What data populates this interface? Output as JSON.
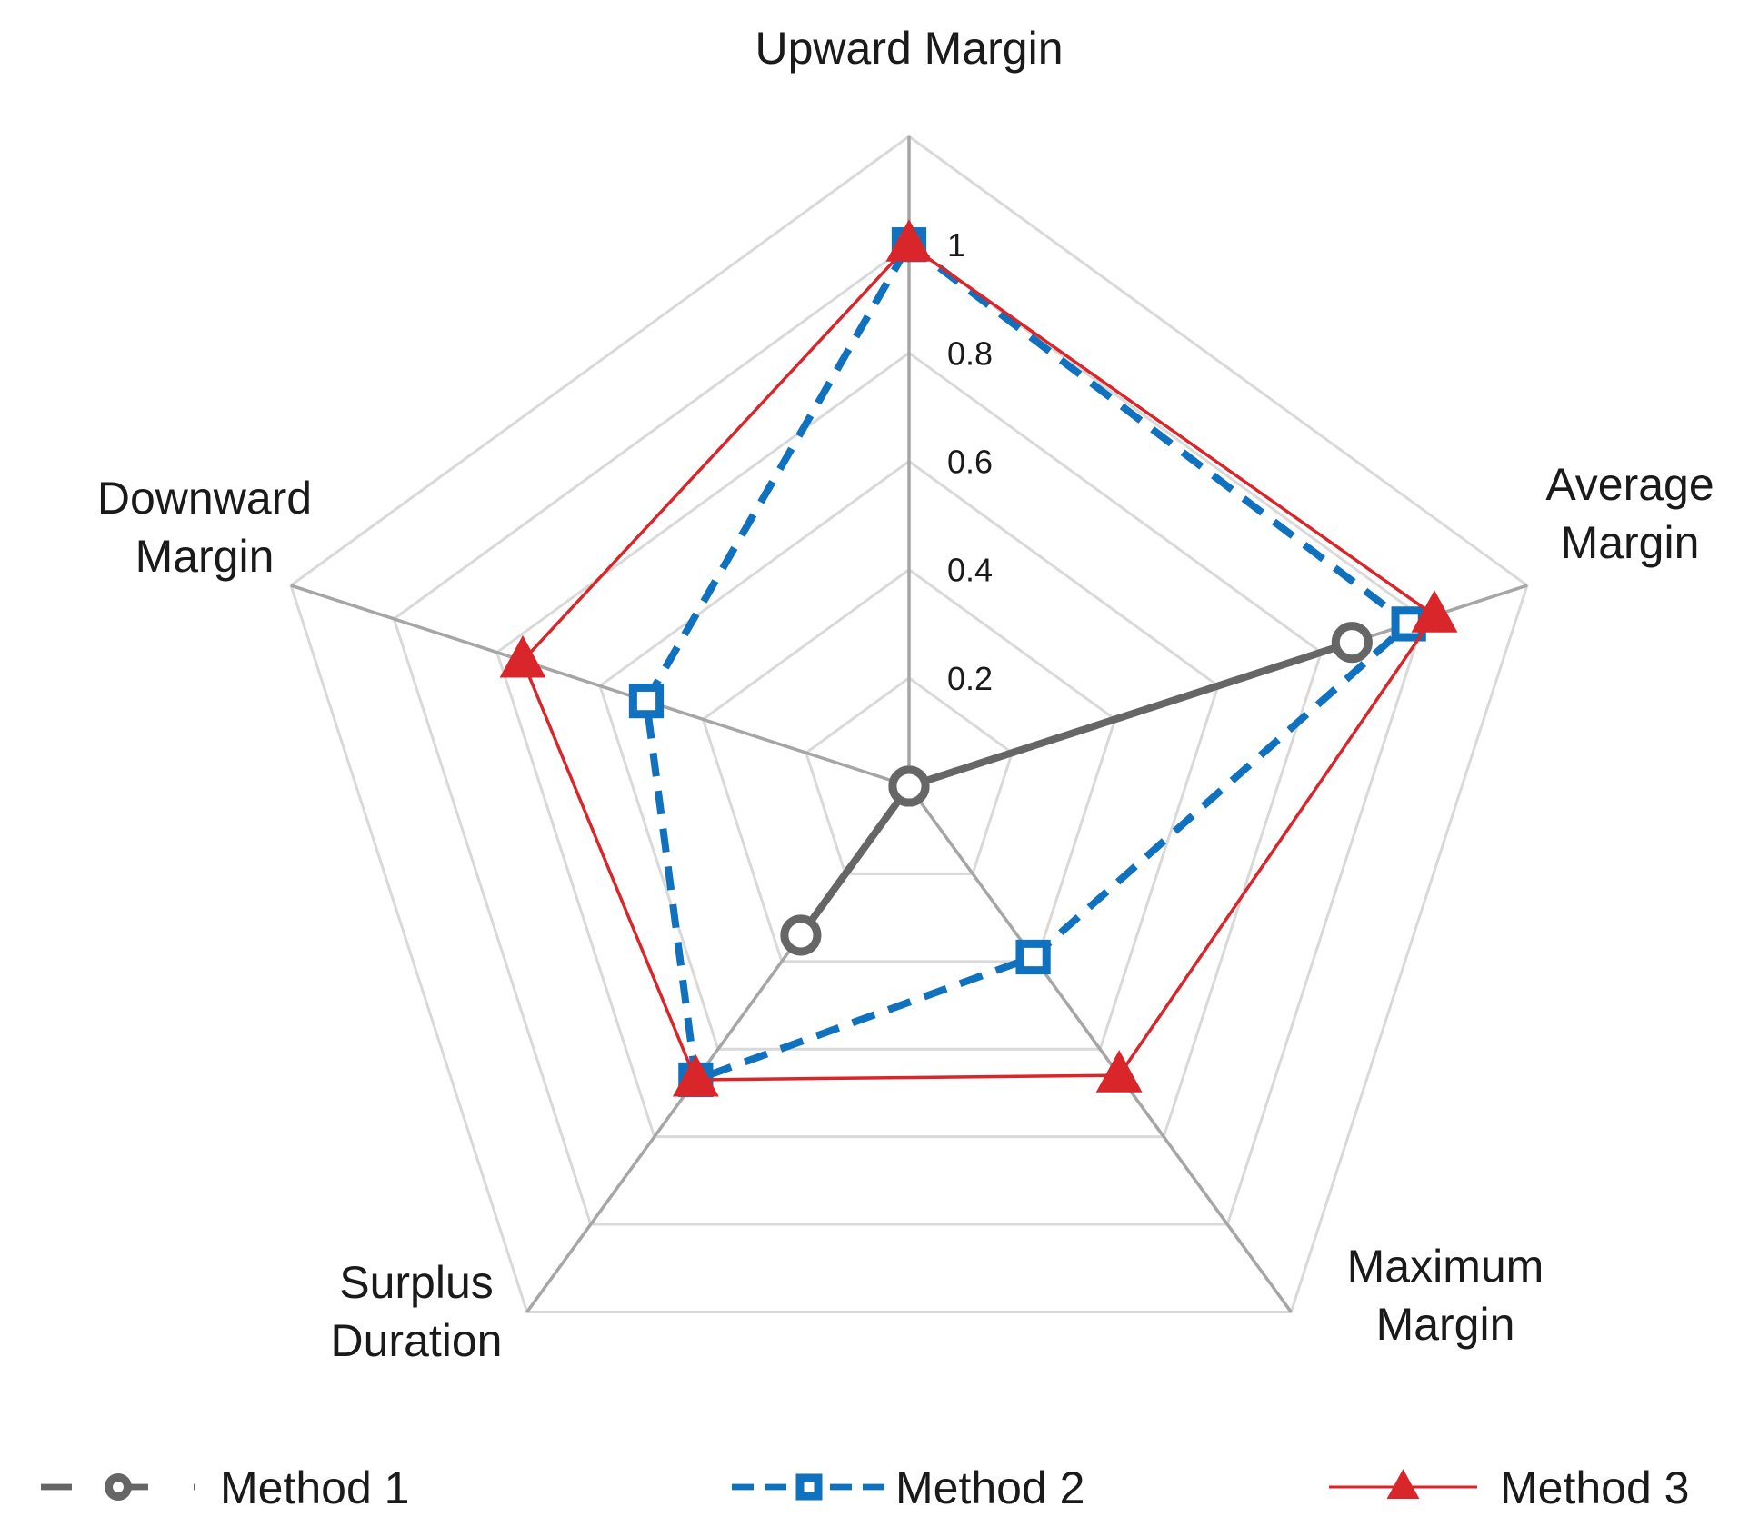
{
  "chart_data": {
    "type": "radar",
    "title": "",
    "axes": [
      "Upward Margin",
      "Average Margin",
      "Maximum Margin",
      "Surplus Duration",
      "Downward Margin"
    ],
    "axis_label_lines": [
      [
        "Upward Margin"
      ],
      [
        "Average",
        "Margin"
      ],
      [
        "Maximum",
        "Margin"
      ],
      [
        "Surplus",
        "Duration"
      ],
      [
        "Downward",
        "Margin"
      ]
    ],
    "range": [
      0,
      1.2
    ],
    "tick_values": [
      0.2,
      0.4,
      0.6,
      0.8,
      1
    ],
    "tick_labels": [
      "0.2",
      "0.4",
      "0.6",
      "0.8",
      "1"
    ],
    "gridlines": true,
    "legend_position": "bottom",
    "series": [
      {
        "name": "Method 1",
        "values": [
          0,
          0.86,
          0,
          0.34,
          0
        ],
        "color": "#666666",
        "line": "long-dash",
        "marker": "circle"
      },
      {
        "name": "Method 2",
        "values": [
          1,
          0.97,
          0.39,
          0.67,
          0.51
        ],
        "color": "#1071be",
        "line": "dashed",
        "marker": "square"
      },
      {
        "name": "Method 3",
        "values": [
          1,
          1.02,
          0.66,
          0.67,
          0.75
        ],
        "color": "#d8262b",
        "line": "solid",
        "marker": "triangle"
      }
    ]
  }
}
